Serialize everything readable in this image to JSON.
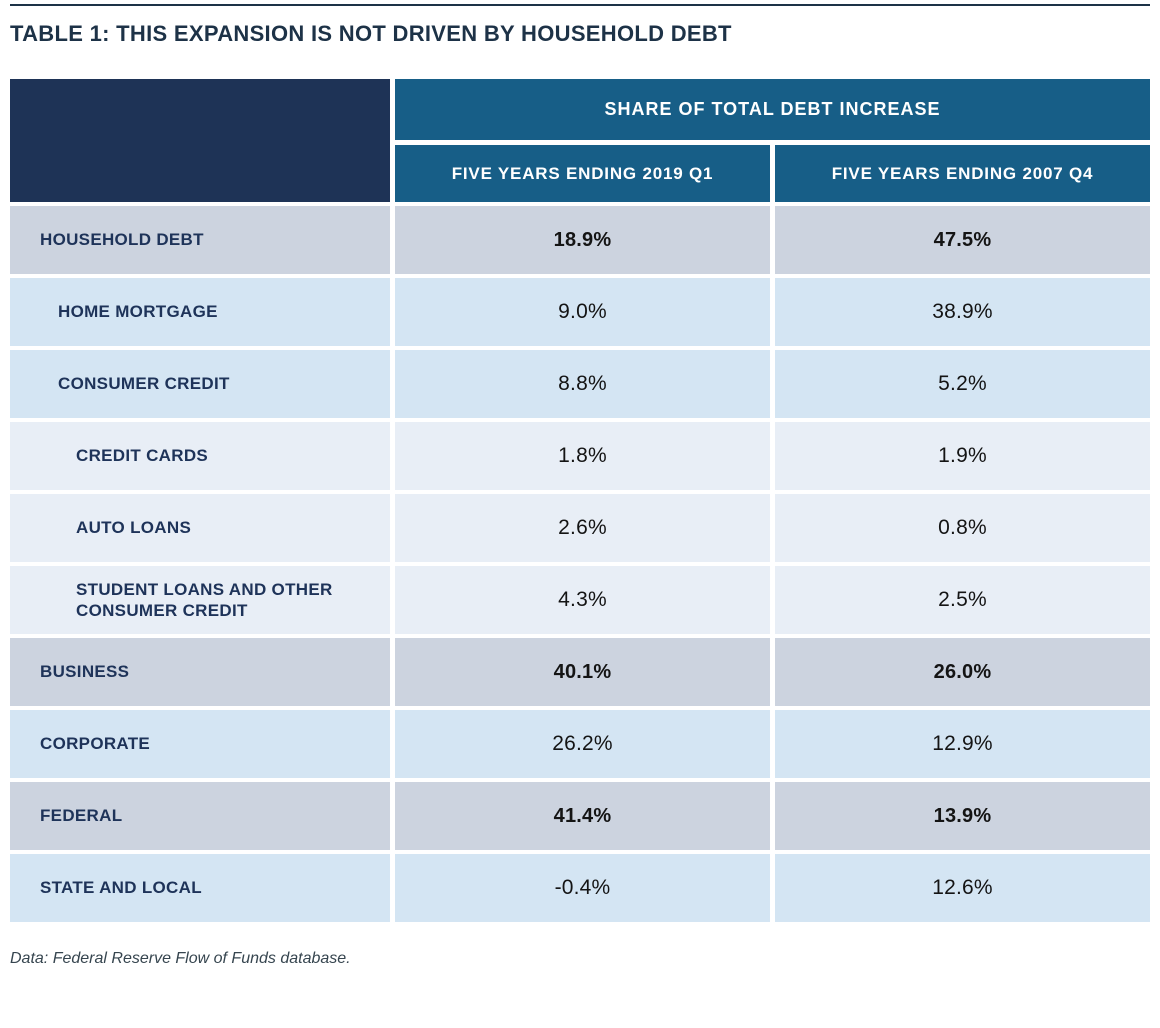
{
  "title": "TABLE 1: THIS EXPANSION IS NOT DRIVEN BY HOUSEHOLD DEBT",
  "table": {
    "group_header": "SHARE OF TOTAL DEBT INCREASE",
    "columns": [
      "FIVE YEARS ENDING 2019 Q1",
      "FIVE YEARS ENDING 2007 Q4"
    ],
    "rows": [
      {
        "label": "HOUSEHOLD DEBT",
        "values": [
          "18.9%",
          "47.5%"
        ],
        "level": 1,
        "shade": "gray"
      },
      {
        "label": "HOME MORTGAGE",
        "values": [
          "9.0%",
          "38.9%"
        ],
        "level": 2,
        "shade": "blue"
      },
      {
        "label": "CONSUMER CREDIT",
        "values": [
          "8.8%",
          "5.2%"
        ],
        "level": 2,
        "shade": "blue"
      },
      {
        "label": "CREDIT CARDS",
        "values": [
          "1.8%",
          "1.9%"
        ],
        "level": 3,
        "shade": "lightest"
      },
      {
        "label": "AUTO LOANS",
        "values": [
          "2.6%",
          "0.8%"
        ],
        "level": 3,
        "shade": "lightest"
      },
      {
        "label": "STUDENT LOANS AND OTHER CONSUMER CREDIT",
        "values": [
          "4.3%",
          "2.5%"
        ],
        "level": 3,
        "shade": "lightest"
      },
      {
        "label": "BUSINESS",
        "values": [
          "40.1%",
          "26.0%"
        ],
        "level": 1,
        "shade": "gray"
      },
      {
        "label": "CORPORATE",
        "values": [
          "26.2%",
          "12.9%"
        ],
        "level": 1,
        "shade": "blue"
      },
      {
        "label": "FEDERAL",
        "values": [
          "41.4%",
          "13.9%"
        ],
        "level": 1,
        "shade": "gray"
      },
      {
        "label": "STATE AND LOCAL",
        "values": [
          "-0.4%",
          "12.6%"
        ],
        "level": 1,
        "shade": "blue"
      }
    ]
  },
  "footnote": "Data: Federal Reserve Flow of Funds database.",
  "colors": {
    "header_navy": "#1e3356",
    "header_teal": "#175e87",
    "row_gray": "#ccd3df",
    "row_light_blue": "#d4e5f3",
    "row_lightest_blue": "#e8eef6",
    "label_text": "#1e3359",
    "title_text": "#1d3247",
    "value_text": "#141414",
    "footnote_text": "#36454f"
  },
  "chart_data": {
    "type": "table",
    "title": "TABLE 1: THIS EXPANSION IS NOT DRIVEN BY HOUSEHOLD DEBT",
    "group_header": "SHARE OF TOTAL DEBT INCREASE",
    "categories": [
      "HOUSEHOLD DEBT",
      "HOME MORTGAGE",
      "CONSUMER CREDIT",
      "CREDIT CARDS",
      "AUTO LOANS",
      "STUDENT LOANS AND OTHER CONSUMER CREDIT",
      "BUSINESS",
      "CORPORATE",
      "FEDERAL",
      "STATE AND LOCAL"
    ],
    "series": [
      {
        "name": "FIVE YEARS ENDING 2019 Q1",
        "values": [
          18.9,
          9.0,
          8.8,
          1.8,
          2.6,
          4.3,
          40.1,
          26.2,
          41.4,
          -0.4
        ]
      },
      {
        "name": "FIVE YEARS ENDING 2007 Q4",
        "values": [
          47.5,
          38.9,
          5.2,
          1.9,
          0.8,
          2.5,
          26.0,
          12.9,
          13.9,
          12.6
        ]
      }
    ],
    "unit": "%",
    "hierarchy_levels": [
      1,
      2,
      2,
      3,
      3,
      3,
      1,
      1,
      1,
      1
    ],
    "source_note": "Data: Federal Reserve Flow of Funds database."
  }
}
